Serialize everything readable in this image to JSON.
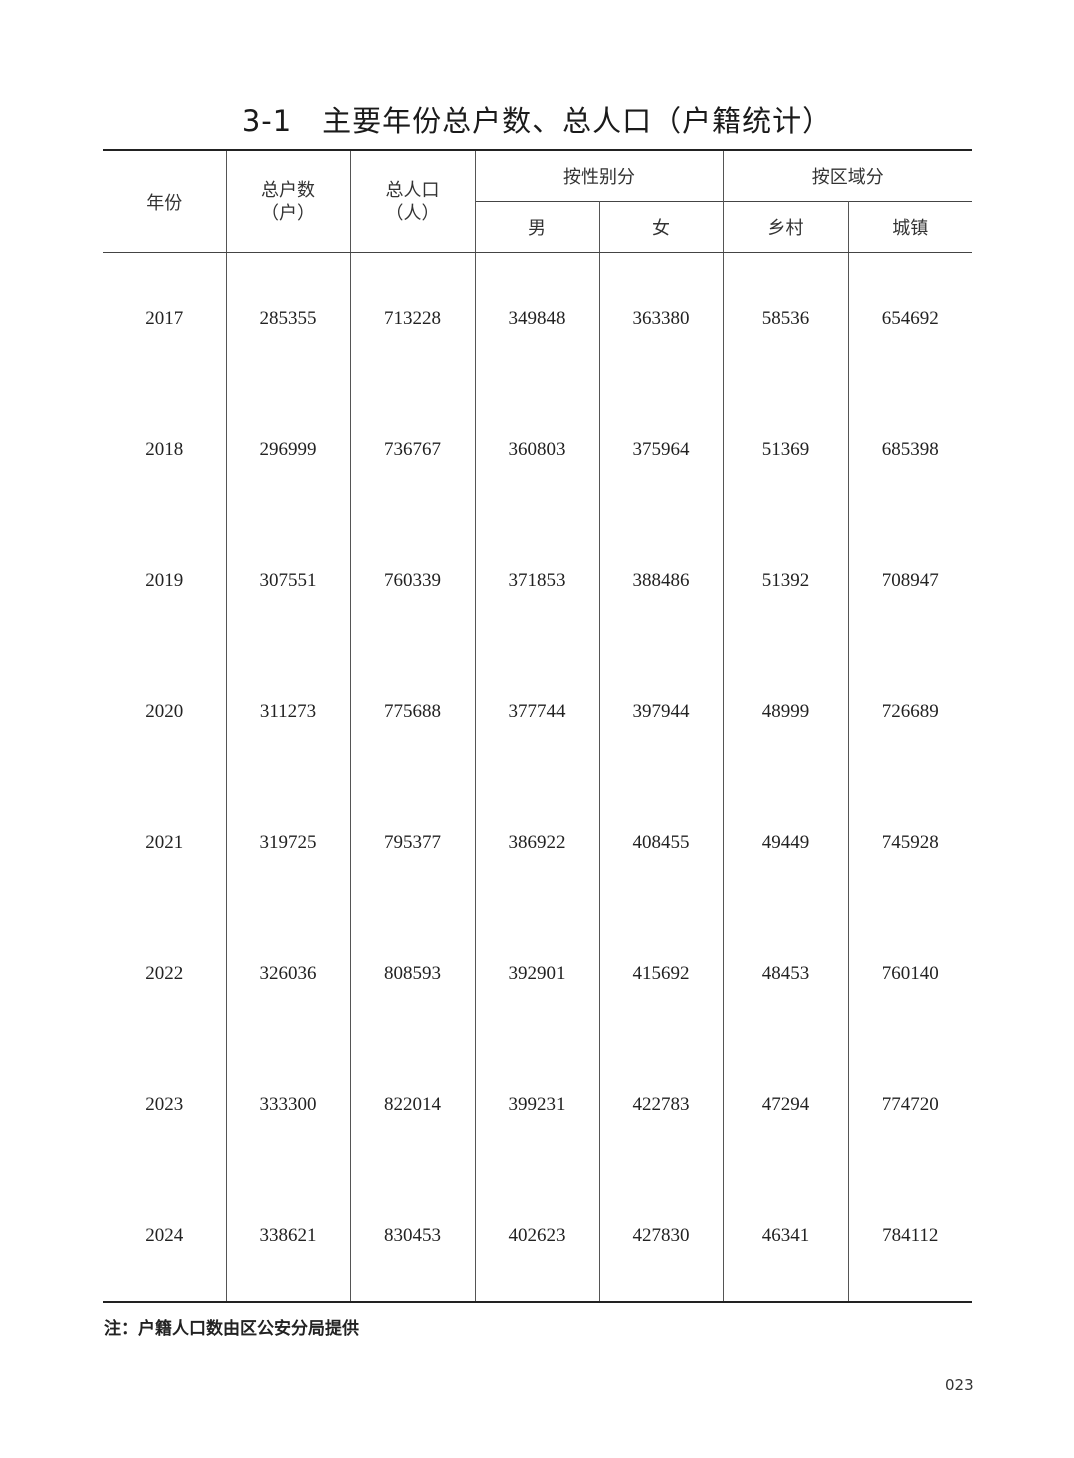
{
  "title": "3-1　主要年份总户数、总人口（户籍统计）",
  "header": {
    "year": "年份",
    "households": "总户数",
    "households_unit": "（户）",
    "population": "总人口",
    "population_unit": "（人）",
    "by_sex": "按性别分",
    "male": "男",
    "female": "女",
    "by_area": "按区域分",
    "rural": "乡村",
    "urban": "城镇"
  },
  "rows": [
    [
      "2017",
      "285355",
      "713228",
      "349848",
      "363380",
      "58536",
      "654692"
    ],
    [
      "2018",
      "296999",
      "736767",
      "360803",
      "375964",
      "51369",
      "685398"
    ],
    [
      "2019",
      "307551",
      "760339",
      "371853",
      "388486",
      "51392",
      "708947"
    ],
    [
      "2020",
      "311273",
      "775688",
      "377744",
      "397944",
      "48999",
      "726689"
    ],
    [
      "2021",
      "319725",
      "795377",
      "386922",
      "408455",
      "49449",
      "745928"
    ],
    [
      "2022",
      "326036",
      "808593",
      "392901",
      "415692",
      "48453",
      "760140"
    ],
    [
      "2023",
      "333300",
      "822014",
      "399231",
      "422783",
      "47294",
      "774720"
    ],
    [
      "2024",
      "338621",
      "830453",
      "402623",
      "427830",
      "46341",
      "784112"
    ]
  ],
  "note": "注：户籍人口数由区公安分局提供",
  "page_number": "023"
}
